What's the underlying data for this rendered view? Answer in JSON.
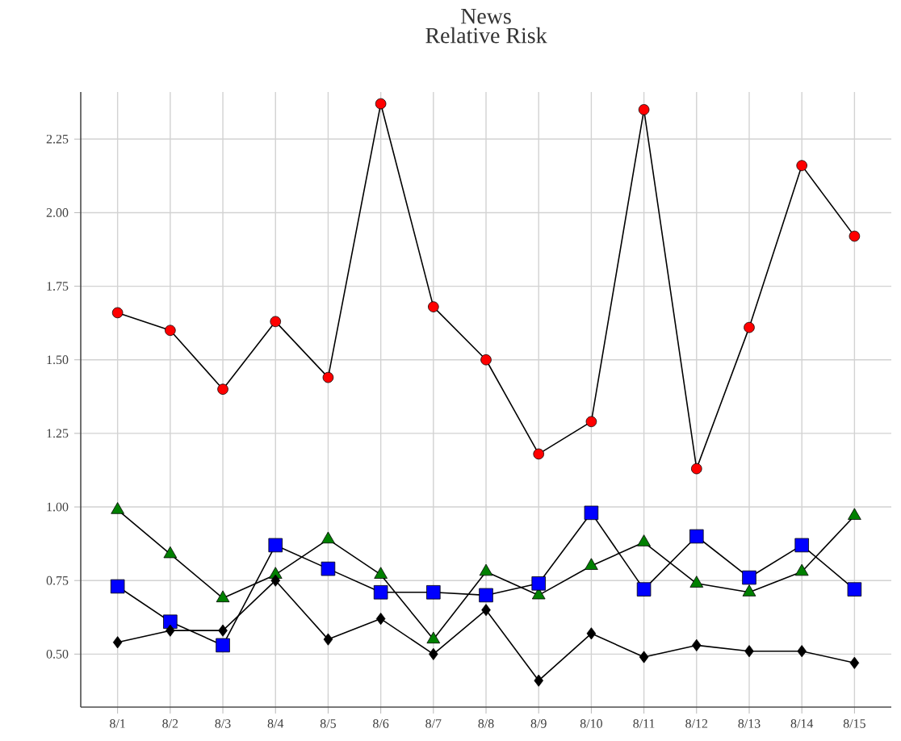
{
  "chart_data": {
    "type": "line",
    "title": "News",
    "subtitle": "Relative Risk",
    "categories": [
      "8/1",
      "8/2",
      "8/3",
      "8/4",
      "8/5",
      "8/6",
      "8/7",
      "8/8",
      "8/9",
      "8/10",
      "8/11",
      "8/12",
      "8/13",
      "8/14",
      "8/15"
    ],
    "series": [
      {
        "color": "#ff0000",
        "marker": "circle",
        "values": [
          1.66,
          1.6,
          1.4,
          1.63,
          1.44,
          2.37,
          1.68,
          1.5,
          1.18,
          1.29,
          2.35,
          1.13,
          1.61,
          2.16,
          1.92
        ]
      },
      {
        "color": "#008000",
        "marker": "triangle",
        "values": [
          0.99,
          0.84,
          0.69,
          0.77,
          0.89,
          0.77,
          0.55,
          0.78,
          0.7,
          0.8,
          0.88,
          0.74,
          0.71,
          0.78,
          0.97
        ]
      },
      {
        "color": "#0000ff",
        "marker": "square",
        "values": [
          0.73,
          0.61,
          0.53,
          0.87,
          0.79,
          0.71,
          0.71,
          0.7,
          0.74,
          0.98,
          0.72,
          0.9,
          0.76,
          0.87,
          0.72
        ]
      },
      {
        "color": "#000000",
        "marker": "diamond",
        "values": [
          0.54,
          0.58,
          0.58,
          0.75,
          0.55,
          0.62,
          0.5,
          0.65,
          0.41,
          0.57,
          0.49,
          0.53,
          0.51,
          0.51,
          0.47
        ]
      }
    ],
    "ylim": [
      0.32,
      2.41
    ],
    "yticks": [
      {
        "value": 0.5,
        "label": "0.50"
      },
      {
        "value": 0.75,
        "label": "0.75"
      },
      {
        "value": 1.0,
        "label": "1.00"
      },
      {
        "value": 1.25,
        "label": "1.25"
      },
      {
        "value": 1.5,
        "label": "1.50"
      },
      {
        "value": 1.75,
        "label": "1.75"
      },
      {
        "value": 2.0,
        "label": "2.00"
      },
      {
        "value": 2.25,
        "label": "2.25"
      }
    ],
    "grid": true,
    "line_style": "solid"
  }
}
